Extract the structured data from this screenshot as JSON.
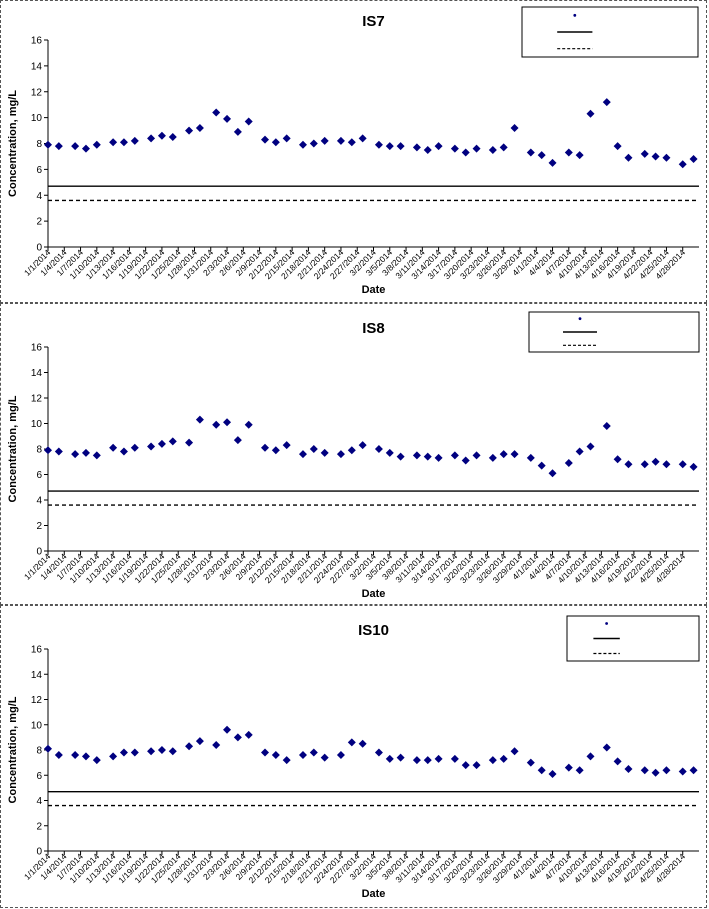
{
  "chart_data": [
    {
      "type": "scatter",
      "title": "IS7",
      "xlabel": "Date",
      "ylabel": "Concentration, mg/L",
      "ylim": [
        0,
        16
      ],
      "yticks": [
        0,
        2,
        4,
        6,
        8,
        10,
        12,
        14,
        16
      ],
      "grid": false,
      "legend_position": "top-right",
      "x_tick_labels": [
        "1/1/2014",
        "1/4/2014",
        "1/7/2014",
        "1/10/2014",
        "1/13/2014",
        "1/16/2014",
        "1/19/2014",
        "1/22/2014",
        "1/25/2014",
        "1/28/2014",
        "1/31/2014",
        "2/3/2014",
        "2/6/2014",
        "2/9/2014",
        "2/12/2014",
        "2/15/2014",
        "2/18/2014",
        "2/21/2014",
        "2/24/2014",
        "2/27/2014",
        "3/2/2014",
        "3/5/2014",
        "3/8/2014",
        "3/11/2014",
        "3/14/2014",
        "3/17/2014",
        "3/20/2014",
        "3/23/2014",
        "3/26/2014",
        "3/29/2014",
        "4/1/2014",
        "4/4/2014",
        "4/7/2014",
        "4/10/2014",
        "4/13/2014",
        "4/16/2014",
        "4/19/2014",
        "4/22/2014",
        "4/25/2014",
        "4/28/2014"
      ],
      "series": [
        {
          "marker": "diamond",
          "color": "#000080",
          "x": [
            "1/1/2014",
            "1/3/2014",
            "1/6/2014",
            "1/8/2014",
            "1/10/2014",
            "1/13/2014",
            "1/15/2014",
            "1/17/2014",
            "1/20/2014",
            "1/22/2014",
            "1/24/2014",
            "1/27/2014",
            "1/29/2014",
            "2/1/2014",
            "2/3/2014",
            "2/5/2014",
            "2/7/2014",
            "2/10/2014",
            "2/12/2014",
            "2/14/2014",
            "2/17/2014",
            "2/19/2014",
            "2/21/2014",
            "2/24/2014",
            "2/26/2014",
            "2/28/2014",
            "3/3/2014",
            "3/5/2014",
            "3/7/2014",
            "3/10/2014",
            "3/12/2014",
            "3/14/2014",
            "3/17/2014",
            "3/19/2014",
            "3/21/2014",
            "3/24/2014",
            "3/26/2014",
            "3/28/2014",
            "3/31/2014",
            "4/2/2014",
            "4/4/2014",
            "4/7/2014",
            "4/9/2014",
            "4/11/2014",
            "4/14/2014",
            "4/16/2014",
            "4/18/2014",
            "4/21/2014",
            "4/23/2014",
            "4/25/2014",
            "4/28/2014",
            "4/30/2014"
          ],
          "y": [
            7.9,
            7.8,
            7.8,
            7.6,
            7.9,
            8.1,
            8.1,
            8.2,
            8.4,
            8.6,
            8.5,
            9.0,
            9.2,
            10.4,
            9.9,
            8.9,
            9.7,
            8.3,
            8.1,
            8.4,
            7.9,
            8.0,
            8.2,
            8.2,
            8.1,
            8.4,
            7.9,
            7.8,
            7.8,
            7.7,
            7.5,
            7.8,
            7.6,
            7.3,
            7.6,
            7.5,
            7.7,
            9.2,
            7.3,
            7.1,
            6.5,
            7.3,
            7.1,
            10.3,
            11.2,
            7.8,
            6.9,
            7.2,
            7.0,
            6.9,
            6.4,
            6.8
          ]
        }
      ],
      "reference_lines": [
        {
          "style": "solid",
          "y": 4.7
        },
        {
          "style": "dashed",
          "y": 3.6
        }
      ]
    },
    {
      "type": "scatter",
      "title": "IS8",
      "xlabel": "Date",
      "ylabel": "Concentration, mg/L",
      "ylim": [
        0,
        16
      ],
      "yticks": [
        0,
        2,
        4,
        6,
        8,
        10,
        12,
        14,
        16
      ],
      "grid": false,
      "legend_position": "top-right",
      "x_tick_labels": [
        "1/1/2014",
        "1/4/2014",
        "1/7/2014",
        "1/10/2014",
        "1/13/2014",
        "1/16/2014",
        "1/19/2014",
        "1/22/2014",
        "1/25/2014",
        "1/28/2014",
        "1/31/2014",
        "2/3/2014",
        "2/6/2014",
        "2/9/2014",
        "2/12/2014",
        "2/15/2014",
        "2/18/2014",
        "2/21/2014",
        "2/24/2014",
        "2/27/2014",
        "3/2/2014",
        "3/5/2014",
        "3/8/2014",
        "3/11/2014",
        "3/14/2014",
        "3/17/2014",
        "3/20/2014",
        "3/23/2014",
        "3/26/2014",
        "3/29/2014",
        "4/1/2014",
        "4/4/2014",
        "4/7/2014",
        "4/10/2014",
        "4/13/2014",
        "4/16/2014",
        "4/19/2014",
        "4/22/2014",
        "4/25/2014",
        "4/28/2014"
      ],
      "series": [
        {
          "marker": "diamond",
          "color": "#000080",
          "x": [
            "1/1/2014",
            "1/3/2014",
            "1/6/2014",
            "1/8/2014",
            "1/10/2014",
            "1/13/2014",
            "1/15/2014",
            "1/17/2014",
            "1/20/2014",
            "1/22/2014",
            "1/24/2014",
            "1/27/2014",
            "1/29/2014",
            "2/1/2014",
            "2/3/2014",
            "2/5/2014",
            "2/7/2014",
            "2/10/2014",
            "2/12/2014",
            "2/14/2014",
            "2/17/2014",
            "2/19/2014",
            "2/21/2014",
            "2/24/2014",
            "2/26/2014",
            "2/28/2014",
            "3/3/2014",
            "3/5/2014",
            "3/7/2014",
            "3/10/2014",
            "3/12/2014",
            "3/14/2014",
            "3/17/2014",
            "3/19/2014",
            "3/21/2014",
            "3/24/2014",
            "3/26/2014",
            "3/28/2014",
            "3/31/2014",
            "4/2/2014",
            "4/4/2014",
            "4/7/2014",
            "4/9/2014",
            "4/11/2014",
            "4/14/2014",
            "4/16/2014",
            "4/18/2014",
            "4/21/2014",
            "4/23/2014",
            "4/25/2014",
            "4/28/2014",
            "4/30/2014"
          ],
          "y": [
            7.9,
            7.8,
            7.6,
            7.7,
            7.5,
            8.1,
            7.8,
            8.1,
            8.2,
            8.4,
            8.6,
            8.5,
            10.3,
            9.9,
            10.1,
            8.7,
            9.9,
            8.1,
            7.9,
            8.3,
            7.6,
            8.0,
            7.7,
            7.6,
            7.9,
            8.3,
            8.0,
            7.7,
            7.4,
            7.5,
            7.4,
            7.3,
            7.5,
            7.1,
            7.5,
            7.3,
            7.6,
            7.6,
            7.3,
            6.7,
            6.1,
            6.9,
            7.8,
            8.2,
            9.8,
            7.2,
            6.8,
            6.8,
            7.0,
            6.8,
            6.8,
            6.6
          ]
        }
      ],
      "reference_lines": [
        {
          "style": "solid",
          "y": 4.7
        },
        {
          "style": "dashed",
          "y": 3.6
        }
      ]
    },
    {
      "type": "scatter",
      "title": "IS10",
      "xlabel": "Date",
      "ylabel": "Concentration, mg/L",
      "ylim": [
        0,
        16
      ],
      "yticks": [
        0,
        2,
        4,
        6,
        8,
        10,
        12,
        14,
        16
      ],
      "grid": false,
      "legend_position": "top-right",
      "x_tick_labels": [
        "1/1/2014",
        "1/4/2014",
        "1/7/2014",
        "1/10/2014",
        "1/13/2014",
        "1/16/2014",
        "1/19/2014",
        "1/22/2014",
        "1/25/2014",
        "1/28/2014",
        "1/31/2014",
        "2/3/2014",
        "2/6/2014",
        "2/9/2014",
        "2/12/2014",
        "2/15/2014",
        "2/18/2014",
        "2/21/2014",
        "2/24/2014",
        "2/27/2014",
        "3/2/2014",
        "3/5/2014",
        "3/8/2014",
        "3/11/2014",
        "3/14/2014",
        "3/17/2014",
        "3/20/2014",
        "3/23/2014",
        "3/26/2014",
        "3/29/2014",
        "4/1/2014",
        "4/4/2014",
        "4/7/2014",
        "4/10/2014",
        "4/13/2014",
        "4/16/2014",
        "4/19/2014",
        "4/22/2014",
        "4/25/2014",
        "4/28/2014"
      ],
      "series": [
        {
          "marker": "diamond",
          "color": "#000080",
          "x": [
            "1/1/2014",
            "1/3/2014",
            "1/6/2014",
            "1/8/2014",
            "1/10/2014",
            "1/13/2014",
            "1/15/2014",
            "1/17/2014",
            "1/20/2014",
            "1/22/2014",
            "1/24/2014",
            "1/27/2014",
            "1/29/2014",
            "2/1/2014",
            "2/3/2014",
            "2/5/2014",
            "2/7/2014",
            "2/10/2014",
            "2/12/2014",
            "2/14/2014",
            "2/17/2014",
            "2/19/2014",
            "2/21/2014",
            "2/24/2014",
            "2/26/2014",
            "2/28/2014",
            "3/3/2014",
            "3/5/2014",
            "3/7/2014",
            "3/10/2014",
            "3/12/2014",
            "3/14/2014",
            "3/17/2014",
            "3/19/2014",
            "3/21/2014",
            "3/24/2014",
            "3/26/2014",
            "3/28/2014",
            "3/31/2014",
            "4/2/2014",
            "4/4/2014",
            "4/7/2014",
            "4/9/2014",
            "4/11/2014",
            "4/14/2014",
            "4/16/2014",
            "4/18/2014",
            "4/21/2014",
            "4/23/2014",
            "4/25/2014",
            "4/28/2014",
            "4/30/2014"
          ],
          "y": [
            8.1,
            7.6,
            7.6,
            7.5,
            7.2,
            7.5,
            7.8,
            7.8,
            7.9,
            8.0,
            7.9,
            8.3,
            8.7,
            8.4,
            9.6,
            9.0,
            9.2,
            7.8,
            7.6,
            7.2,
            7.6,
            7.8,
            7.4,
            7.6,
            8.6,
            8.5,
            7.8,
            7.3,
            7.4,
            7.2,
            7.2,
            7.3,
            7.3,
            6.8,
            6.8,
            7.2,
            7.3,
            7.9,
            7.0,
            6.4,
            6.1,
            6.6,
            6.4,
            7.5,
            8.2,
            7.1,
            6.5,
            6.4,
            6.2,
            6.4,
            6.3,
            6.4
          ]
        }
      ],
      "reference_lines": [
        {
          "style": "solid",
          "y": 4.7
        },
        {
          "style": "dashed",
          "y": 3.6
        }
      ]
    }
  ]
}
